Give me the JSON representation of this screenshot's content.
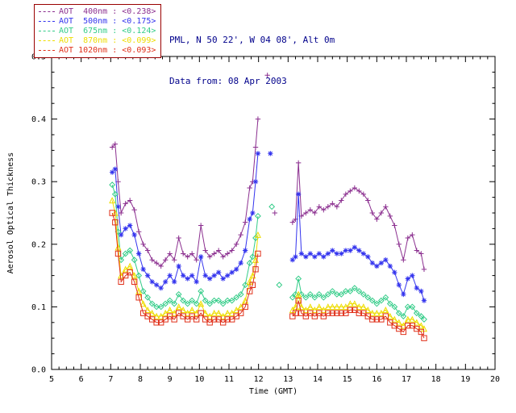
{
  "header": {
    "station_line": "PML, N 50 22', W 04 08', Alt 0m",
    "date_line": "Data from: 08 Apr 2003",
    "text_color": "#00008b"
  },
  "legend": {
    "border_color": "#990000",
    "position": "top-left",
    "entries": [
      {
        "id": "400nm",
        "label": "AOT  400nm : <0.238>",
        "color": "#8b2f8f",
        "symbol": "plus"
      },
      {
        "id": "500nm",
        "label": "AOT  500nm : <0.175>",
        "color": "#3333ee",
        "symbol": "asterisk"
      },
      {
        "id": "675nm",
        "label": "AOT  675nm : <0.124>",
        "color": "#33cc88",
        "symbol": "diamond"
      },
      {
        "id": "870nm",
        "label": "AOT  870nm : <0.099>",
        "color": "#eedd00",
        "symbol": "triangle"
      },
      {
        "id": "1020nm",
        "label": "AOT 1020nm : <0.093>",
        "color": "#e0301a",
        "symbol": "square"
      }
    ]
  },
  "chart_data": {
    "type": "line",
    "title": "",
    "xlabel": "Time (GMT)",
    "ylabel": "Aerosol Optical Thickness",
    "xlim": [
      5,
      20
    ],
    "ylim": [
      0.0,
      0.5
    ],
    "xticks": [
      5,
      6,
      7,
      8,
      9,
      10,
      11,
      12,
      13,
      14,
      15,
      16,
      17,
      18,
      19,
      20
    ],
    "yticks": [
      "0.0",
      "0.1",
      "0.2",
      "0.3",
      "0.4",
      "0.5"
    ],
    "grid": false,
    "legend_position": "top-left",
    "gap_threshold": 0.2,
    "x": [
      7.05,
      7.15,
      7.25,
      7.35,
      7.5,
      7.65,
      7.8,
      7.95,
      8.1,
      8.25,
      8.4,
      8.55,
      8.7,
      8.85,
      9.0,
      9.15,
      9.3,
      9.45,
      9.6,
      9.75,
      9.9,
      10.05,
      10.2,
      10.35,
      10.5,
      10.65,
      10.8,
      10.95,
      11.1,
      11.25,
      11.4,
      11.55,
      11.7,
      11.8,
      11.9,
      11.98,
      12.3,
      12.4,
      12.45,
      12.55,
      12.7,
      13.15,
      13.25,
      13.35,
      13.45,
      13.6,
      13.75,
      13.9,
      14.05,
      14.2,
      14.35,
      14.5,
      14.65,
      14.8,
      14.95,
      15.1,
      15.25,
      15.4,
      15.55,
      15.7,
      15.85,
      16.0,
      16.15,
      16.3,
      16.45,
      16.6,
      16.75,
      16.9,
      17.05,
      17.2,
      17.35,
      17.5,
      17.6
    ],
    "series": [
      {
        "id": "400nm",
        "name": "AOT 400nm",
        "mean": "<0.238>",
        "color": "#8b2f8f",
        "symbol": "plus",
        "values": [
          0.355,
          0.36,
          0.3,
          0.25,
          0.265,
          0.27,
          0.255,
          0.22,
          0.2,
          0.19,
          0.175,
          0.17,
          0.165,
          0.175,
          0.185,
          0.175,
          0.21,
          0.185,
          0.18,
          0.185,
          0.175,
          0.23,
          0.19,
          0.18,
          0.185,
          0.19,
          0.18,
          0.185,
          0.19,
          0.2,
          0.215,
          0.235,
          0.29,
          0.3,
          0.355,
          0.4,
          0.47,
          null,
          null,
          0.25,
          null,
          0.235,
          0.24,
          0.33,
          0.245,
          0.25,
          0.255,
          0.25,
          0.26,
          0.255,
          0.26,
          0.265,
          0.26,
          0.27,
          0.28,
          0.285,
          0.29,
          0.285,
          0.28,
          0.27,
          0.25,
          0.24,
          0.25,
          0.26,
          0.245,
          0.23,
          0.2,
          0.175,
          0.21,
          0.215,
          0.19,
          0.185,
          0.16
        ]
      },
      {
        "id": "500nm",
        "name": "AOT 500nm",
        "mean": "<0.175>",
        "color": "#3333ee",
        "symbol": "asterisk",
        "values": [
          0.315,
          0.32,
          0.26,
          0.215,
          0.225,
          0.23,
          0.215,
          0.185,
          0.16,
          0.15,
          0.14,
          0.135,
          0.13,
          0.14,
          0.15,
          0.14,
          0.165,
          0.15,
          0.145,
          0.15,
          0.14,
          0.18,
          0.15,
          0.145,
          0.15,
          0.155,
          0.145,
          0.15,
          0.155,
          0.16,
          0.17,
          0.19,
          0.24,
          0.25,
          0.3,
          0.345,
          null,
          0.345,
          null,
          null,
          null,
          0.175,
          0.18,
          0.28,
          0.185,
          0.18,
          0.185,
          0.18,
          0.185,
          0.18,
          0.185,
          0.19,
          0.185,
          0.185,
          0.19,
          0.19,
          0.195,
          0.19,
          0.185,
          0.18,
          0.17,
          0.165,
          0.17,
          0.175,
          0.165,
          0.155,
          0.135,
          0.12,
          0.145,
          0.15,
          0.13,
          0.125,
          0.11
        ]
      },
      {
        "id": "675nm",
        "name": "AOT 675nm",
        "mean": "<0.124>",
        "color": "#33cc88",
        "symbol": "diamond",
        "values": [
          0.295,
          0.28,
          0.22,
          0.175,
          0.185,
          0.19,
          0.175,
          0.15,
          0.125,
          0.115,
          0.105,
          0.1,
          0.1,
          0.105,
          0.11,
          0.105,
          0.12,
          0.11,
          0.105,
          0.11,
          0.105,
          0.125,
          0.11,
          0.105,
          0.11,
          0.11,
          0.105,
          0.11,
          0.11,
          0.115,
          0.12,
          0.135,
          0.17,
          0.18,
          0.21,
          0.245,
          null,
          null,
          0.26,
          null,
          0.135,
          0.115,
          0.12,
          0.145,
          0.12,
          0.115,
          0.12,
          0.115,
          0.12,
          0.115,
          0.12,
          0.125,
          0.12,
          0.12,
          0.125,
          0.125,
          0.13,
          0.125,
          0.12,
          0.115,
          0.11,
          0.105,
          0.11,
          0.115,
          0.105,
          0.1,
          0.09,
          0.085,
          0.1,
          0.1,
          0.09,
          0.085,
          0.08
        ]
      },
      {
        "id": "870nm",
        "name": "AOT 870nm",
        "mean": "<0.099>",
        "color": "#eedd00",
        "symbol": "triangle",
        "values": [
          0.27,
          0.25,
          0.195,
          0.15,
          0.16,
          0.165,
          0.15,
          0.125,
          0.105,
          0.095,
          0.09,
          0.085,
          0.085,
          0.09,
          0.095,
          0.09,
          0.1,
          0.095,
          0.09,
          0.095,
          0.09,
          0.105,
          0.09,
          0.085,
          0.09,
          0.09,
          0.085,
          0.09,
          0.09,
          0.095,
          0.1,
          0.11,
          0.14,
          0.15,
          0.175,
          0.215,
          null,
          null,
          null,
          null,
          null,
          0.095,
          0.1,
          0.12,
          0.1,
          0.095,
          0.1,
          0.095,
          0.1,
          0.095,
          0.1,
          0.1,
          0.1,
          0.1,
          0.1,
          0.105,
          0.105,
          0.1,
          0.1,
          0.095,
          0.09,
          0.09,
          0.09,
          0.095,
          0.085,
          0.08,
          0.075,
          0.07,
          0.08,
          0.08,
          0.075,
          0.07,
          0.065
        ]
      },
      {
        "id": "1020nm",
        "name": "AOT 1020nm",
        "mean": "<0.093>",
        "color": "#e0301a",
        "symbol": "square",
        "values": [
          0.25,
          0.235,
          0.185,
          0.14,
          0.15,
          0.155,
          0.14,
          0.115,
          0.09,
          0.085,
          0.08,
          0.075,
          0.075,
          0.08,
          0.085,
          0.08,
          0.09,
          0.085,
          0.08,
          0.085,
          0.08,
          0.09,
          0.08,
          0.075,
          0.08,
          0.08,
          0.075,
          0.08,
          0.08,
          0.085,
          0.09,
          0.1,
          0.125,
          0.135,
          0.16,
          0.185,
          null,
          null,
          null,
          null,
          null,
          0.085,
          0.09,
          0.11,
          0.09,
          0.085,
          0.09,
          0.085,
          0.09,
          0.085,
          0.09,
          0.09,
          0.09,
          0.09,
          0.09,
          0.095,
          0.095,
          0.09,
          0.09,
          0.085,
          0.08,
          0.08,
          0.08,
          0.085,
          0.075,
          0.07,
          0.065,
          0.06,
          0.07,
          0.07,
          0.065,
          0.06,
          0.05
        ]
      }
    ]
  }
}
